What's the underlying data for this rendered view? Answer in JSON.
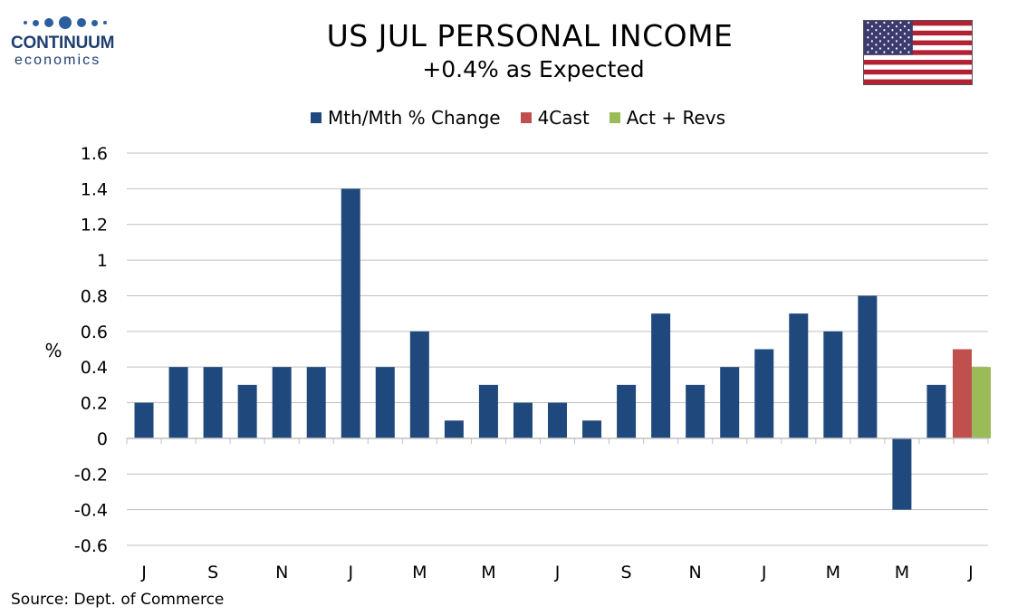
{
  "logo": {
    "name": "CONTINUUM",
    "sub": "economics"
  },
  "header": {
    "title": "US JUL PERSONAL INCOME",
    "subtitle": "+0.4% as Expected"
  },
  "source": "Source: Dept. of Commerce",
  "colors": {
    "main": "#1f497d",
    "forecast": "#c0504d",
    "actual": "#9bbb59"
  },
  "chart_data": {
    "type": "bar",
    "ylabel": "%",
    "ylim": [
      -0.6,
      1.6
    ],
    "yticks": [
      1.6,
      1.4,
      1.2,
      1,
      0.8,
      0.6,
      0.4,
      0.2,
      0,
      -0.2,
      -0.4,
      -0.6
    ],
    "ytick_labels": [
      "1.6",
      "1.4",
      "1.2",
      "1",
      "0.8",
      "0.6",
      "0.4",
      "0.2",
      "0",
      "-0.2",
      "-0.4",
      "-0.6"
    ],
    "x_tick_labels": [
      "J",
      "S",
      "N",
      "J",
      "M",
      "M",
      "J",
      "S",
      "N",
      "J",
      "M",
      "M",
      "J"
    ],
    "legend": [
      "Mth/Mth % Change",
      "4Cast",
      "Act + Revs"
    ],
    "grid": true,
    "series": [
      {
        "name": "Mth/Mth % Change",
        "values": [
          0.2,
          0.4,
          0.4,
          0.3,
          0.4,
          0.4,
          1.4,
          0.4,
          0.6,
          0.1,
          0.3,
          0.2,
          0.2,
          0.1,
          0.3,
          0.7,
          0.3,
          0.4,
          0.5,
          0.7,
          0.6,
          0.8,
          -0.4,
          0.3,
          null
        ]
      },
      {
        "name": "4Cast",
        "values": [
          null,
          null,
          null,
          null,
          null,
          null,
          null,
          null,
          null,
          null,
          null,
          null,
          null,
          null,
          null,
          null,
          null,
          null,
          null,
          null,
          null,
          null,
          null,
          null,
          0.5
        ]
      },
      {
        "name": "Act + Revs",
        "values": [
          null,
          null,
          null,
          null,
          null,
          null,
          null,
          null,
          null,
          null,
          null,
          null,
          null,
          null,
          null,
          null,
          null,
          null,
          null,
          null,
          null,
          null,
          null,
          null,
          0.4
        ]
      }
    ]
  }
}
